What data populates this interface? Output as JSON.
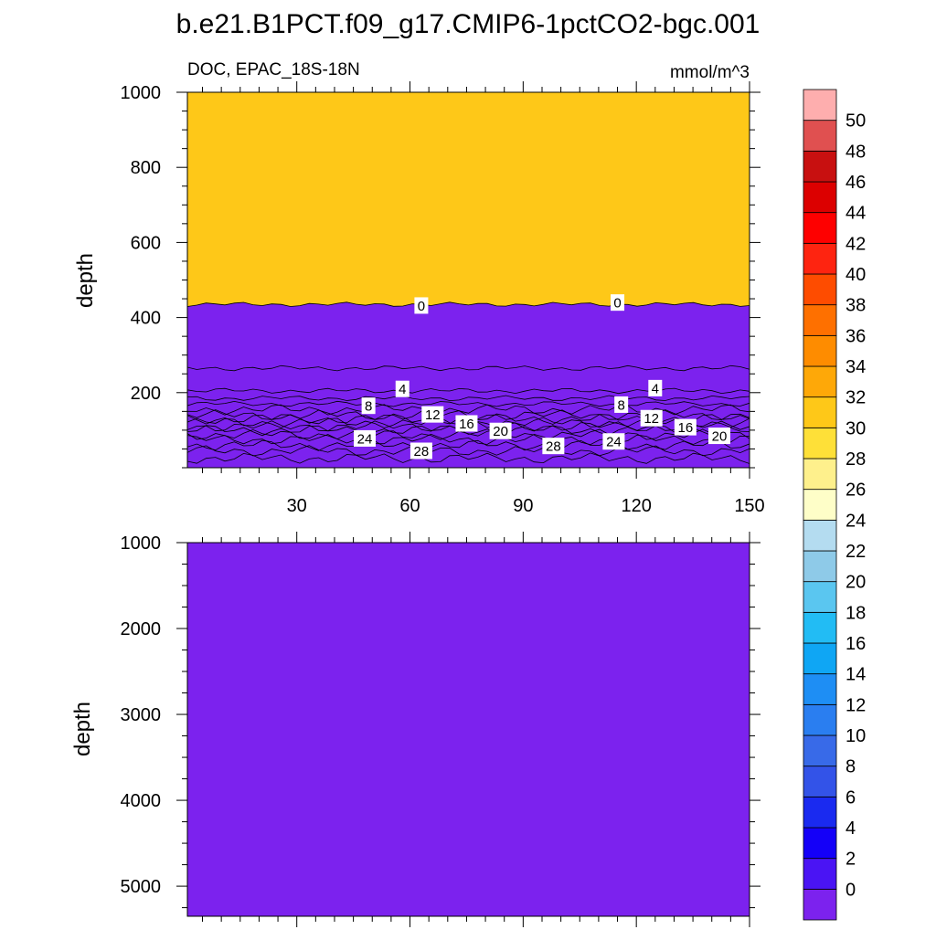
{
  "figure": {
    "title": "b.e21.B1PCT.f09_g17.CMIP6-1pctCO2-bgc.001"
  },
  "chart_data": [
    {
      "type": "heatmap",
      "panel": "top",
      "left_label": "DOC, EPAC_18S-18N",
      "right_label": "mmol/m^3",
      "xlabel": "",
      "ylabel": "depth",
      "xlim": [
        1,
        150
      ],
      "ylim": [
        1000,
        0
      ],
      "y_inverted": true,
      "x_ticks": [
        30,
        60,
        90,
        120,
        150
      ],
      "y_ticks": [
        200,
        400,
        600,
        800,
        1000
      ],
      "contour_interval": 2,
      "contour_levels_approx_depth": [
        {
          "level": 30,
          "depth": 25
        },
        {
          "level": 28,
          "depth": 45
        },
        {
          "level": 26,
          "depth": 60
        },
        {
          "level": 24,
          "depth": 75
        },
        {
          "level": 22,
          "depth": 88
        },
        {
          "level": 20,
          "depth": 100
        },
        {
          "level": 18,
          "depth": 110
        },
        {
          "level": 16,
          "depth": 120
        },
        {
          "level": 14,
          "depth": 130
        },
        {
          "level": 12,
          "depth": 140
        },
        {
          "level": 10,
          "depth": 155
        },
        {
          "level": 8,
          "depth": 170
        },
        {
          "level": 6,
          "depth": 185
        },
        {
          "level": 4,
          "depth": 205
        },
        {
          "level": 2,
          "depth": 265
        },
        {
          "level": 0,
          "depth": 435
        }
      ],
      "contour_labels": [
        {
          "text": "28",
          "x": 63,
          "depth": 45
        },
        {
          "text": "24",
          "x": 48,
          "depth": 78
        },
        {
          "text": "12",
          "x": 66,
          "depth": 142
        },
        {
          "text": "16",
          "x": 75,
          "depth": 118
        },
        {
          "text": "20",
          "x": 84,
          "depth": 98
        },
        {
          "text": "28",
          "x": 98,
          "depth": 58
        },
        {
          "text": "24",
          "x": 114,
          "depth": 70
        },
        {
          "text": "12",
          "x": 124,
          "depth": 132
        },
        {
          "text": "16",
          "x": 133,
          "depth": 108
        },
        {
          "text": "20",
          "x": 142,
          "depth": 85
        },
        {
          "text": "8",
          "x": 49,
          "depth": 165
        },
        {
          "text": "8",
          "x": 116,
          "depth": 168
        },
        {
          "text": "4",
          "x": 58,
          "depth": 210
        },
        {
          "text": "4",
          "x": 125,
          "depth": 212
        },
        {
          "text": "0",
          "x": 63,
          "depth": 432
        },
        {
          "text": "0",
          "x": 115,
          "depth": 440
        }
      ]
    },
    {
      "type": "heatmap",
      "panel": "bottom",
      "xlabel": "",
      "ylabel": "depth",
      "xlim": [
        1,
        150
      ],
      "ylim": [
        1000,
        5350
      ],
      "y_inverted": true,
      "y_ticks": [
        1000,
        2000,
        3000,
        4000,
        5000
      ],
      "uniform_value_range": "< 0"
    }
  ],
  "colorbar": {
    "labels": [
      "50",
      "48",
      "46",
      "44",
      "42",
      "40",
      "38",
      "36",
      "34",
      "32",
      "30",
      "28",
      "26",
      "24",
      "22",
      "20",
      "18",
      "16",
      "14",
      "12",
      "10",
      "8",
      "6",
      "4",
      "2",
      "0"
    ],
    "colors_bottom_to_top": [
      "#7c22ee",
      "#4a14f4",
      "#1400f8",
      "#1a2af0",
      "#3353e8",
      "#386ae8",
      "#2a7ef0",
      "#1e8ef4",
      "#0fa6f4",
      "#22bcf4",
      "#5ac6f0",
      "#8ecae8",
      "#b4dcf0",
      "#fefec8",
      "#fef08c",
      "#fee038",
      "#fec818",
      "#fea808",
      "#fe8c00",
      "#fe7000",
      "#fe4c00",
      "#fe2410",
      "#fe0000",
      "#dc0000",
      "#c81010",
      "#e05050",
      "#feaeae"
    ]
  }
}
